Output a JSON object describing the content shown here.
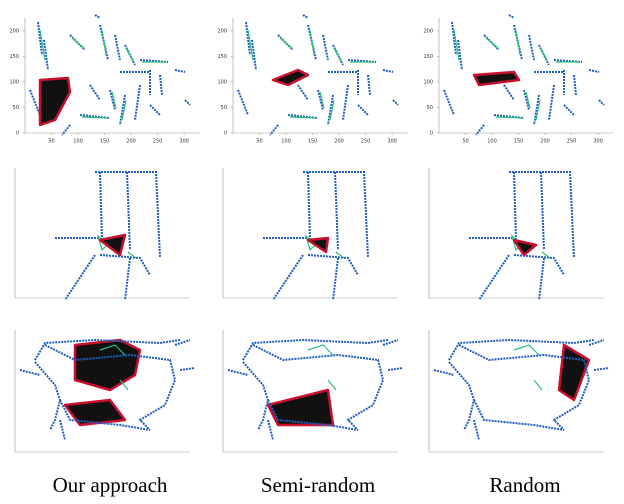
{
  "figure": {
    "top_axes": {
      "xticks": [
        50,
        100,
        150,
        200,
        250,
        300
      ],
      "yticks": [
        0,
        50,
        100,
        150,
        200
      ]
    },
    "captions": [
      "Our approach",
      "Semi-random",
      "Random"
    ]
  }
}
